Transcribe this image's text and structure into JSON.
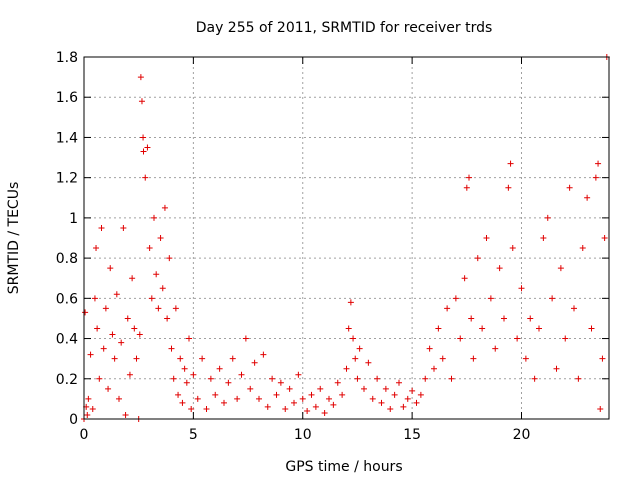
{
  "chart_data": {
    "type": "scatter",
    "title": "Day 255 of 2011, SRMTID for receiver trds",
    "xlabel": "GPS time / hours",
    "ylabel": "SRMTID / TECUs",
    "xlim": [
      0,
      24
    ],
    "ylim": [
      0,
      1.8
    ],
    "xticks": [
      0,
      5,
      10,
      15,
      20
    ],
    "xtick_labels": [
      "0",
      "5",
      "10",
      "15",
      "20"
    ],
    "yticks": [
      0,
      0.2,
      0.4,
      0.6,
      0.8,
      1.0,
      1.2,
      1.4,
      1.6,
      1.8
    ],
    "ytick_labels": [
      "0",
      "0.2",
      "0.4",
      "0.6",
      "0.8",
      "1",
      "1.2",
      "1.4",
      "1.6",
      "1.8"
    ],
    "grid": true,
    "marker": "+",
    "series": [
      {
        "name": "SRMTID",
        "color": "#e00000",
        "points": [
          [
            0.0,
            0.0
          ],
          [
            0.05,
            0.53
          ],
          [
            0.1,
            0.06
          ],
          [
            0.15,
            0.02
          ],
          [
            0.2,
            0.1
          ],
          [
            0.3,
            0.32
          ],
          [
            0.4,
            0.05
          ],
          [
            0.5,
            0.6
          ],
          [
            0.55,
            0.85
          ],
          [
            0.6,
            0.45
          ],
          [
            0.7,
            0.2
          ],
          [
            0.8,
            0.95
          ],
          [
            0.9,
            0.35
          ],
          [
            1.0,
            0.55
          ],
          [
            1.1,
            0.15
          ],
          [
            1.2,
            0.75
          ],
          [
            1.3,
            0.42
          ],
          [
            1.4,
            0.3
          ],
          [
            1.5,
            0.62
          ],
          [
            1.6,
            0.1
          ],
          [
            1.7,
            0.38
          ],
          [
            1.8,
            0.95
          ],
          [
            1.9,
            0.02
          ],
          [
            2.0,
            0.5
          ],
          [
            2.1,
            0.22
          ],
          [
            2.2,
            0.7
          ],
          [
            2.3,
            0.45
          ],
          [
            2.4,
            0.3
          ],
          [
            2.5,
            0.0
          ],
          [
            2.55,
            0.42
          ],
          [
            2.6,
            1.7
          ],
          [
            2.65,
            1.58
          ],
          [
            2.7,
            1.4
          ],
          [
            2.72,
            1.33
          ],
          [
            2.8,
            1.2
          ],
          [
            2.9,
            1.35
          ],
          [
            3.0,
            0.85
          ],
          [
            3.1,
            0.6
          ],
          [
            3.2,
            1.0
          ],
          [
            3.3,
            0.72
          ],
          [
            3.4,
            0.55
          ],
          [
            3.5,
            0.9
          ],
          [
            3.6,
            0.65
          ],
          [
            3.7,
            1.05
          ],
          [
            3.8,
            0.5
          ],
          [
            3.9,
            0.8
          ],
          [
            4.0,
            0.35
          ],
          [
            4.1,
            0.2
          ],
          [
            4.2,
            0.55
          ],
          [
            4.3,
            0.12
          ],
          [
            4.4,
            0.3
          ],
          [
            4.5,
            0.08
          ],
          [
            4.6,
            0.25
          ],
          [
            4.7,
            0.18
          ],
          [
            4.8,
            0.4
          ],
          [
            4.9,
            0.05
          ],
          [
            5.0,
            0.22
          ],
          [
            5.2,
            0.1
          ],
          [
            5.4,
            0.3
          ],
          [
            5.6,
            0.05
          ],
          [
            5.8,
            0.2
          ],
          [
            6.0,
            0.12
          ],
          [
            6.2,
            0.25
          ],
          [
            6.4,
            0.08
          ],
          [
            6.6,
            0.18
          ],
          [
            6.8,
            0.3
          ],
          [
            7.0,
            0.1
          ],
          [
            7.2,
            0.22
          ],
          [
            7.4,
            0.4
          ],
          [
            7.6,
            0.15
          ],
          [
            7.8,
            0.28
          ],
          [
            8.0,
            0.1
          ],
          [
            8.2,
            0.32
          ],
          [
            8.4,
            0.06
          ],
          [
            8.6,
            0.2
          ],
          [
            8.8,
            0.12
          ],
          [
            9.0,
            0.18
          ],
          [
            9.2,
            0.05
          ],
          [
            9.4,
            0.15
          ],
          [
            9.6,
            0.08
          ],
          [
            9.8,
            0.22
          ],
          [
            10.0,
            0.1
          ],
          [
            10.2,
            0.04
          ],
          [
            10.4,
            0.12
          ],
          [
            10.6,
            0.06
          ],
          [
            10.8,
            0.15
          ],
          [
            11.0,
            0.03
          ],
          [
            11.2,
            0.1
          ],
          [
            11.4,
            0.07
          ],
          [
            11.6,
            0.18
          ],
          [
            11.8,
            0.12
          ],
          [
            12.0,
            0.25
          ],
          [
            12.1,
            0.45
          ],
          [
            12.2,
            0.58
          ],
          [
            12.3,
            0.4
          ],
          [
            12.4,
            0.3
          ],
          [
            12.5,
            0.2
          ],
          [
            12.6,
            0.35
          ],
          [
            12.8,
            0.15
          ],
          [
            13.0,
            0.28
          ],
          [
            13.2,
            0.1
          ],
          [
            13.4,
            0.2
          ],
          [
            13.6,
            0.08
          ],
          [
            13.8,
            0.15
          ],
          [
            14.0,
            0.05
          ],
          [
            14.2,
            0.12
          ],
          [
            14.4,
            0.18
          ],
          [
            14.6,
            0.06
          ],
          [
            14.8,
            0.1
          ],
          [
            15.0,
            0.14
          ],
          [
            15.2,
            0.08
          ],
          [
            15.4,
            0.12
          ],
          [
            15.6,
            0.2
          ],
          [
            15.8,
            0.35
          ],
          [
            16.0,
            0.25
          ],
          [
            16.2,
            0.45
          ],
          [
            16.4,
            0.3
          ],
          [
            16.6,
            0.55
          ],
          [
            16.8,
            0.2
          ],
          [
            17.0,
            0.6
          ],
          [
            17.2,
            0.4
          ],
          [
            17.4,
            0.7
          ],
          [
            17.5,
            1.15
          ],
          [
            17.6,
            1.2
          ],
          [
            17.7,
            0.5
          ],
          [
            17.8,
            0.3
          ],
          [
            18.0,
            0.8
          ],
          [
            18.2,
            0.45
          ],
          [
            18.4,
            0.9
          ],
          [
            18.6,
            0.6
          ],
          [
            18.8,
            0.35
          ],
          [
            19.0,
            0.75
          ],
          [
            19.2,
            0.5
          ],
          [
            19.4,
            1.15
          ],
          [
            19.5,
            1.27
          ],
          [
            19.6,
            0.85
          ],
          [
            19.8,
            0.4
          ],
          [
            20.0,
            0.65
          ],
          [
            20.2,
            0.3
          ],
          [
            20.4,
            0.5
          ],
          [
            20.6,
            0.2
          ],
          [
            20.8,
            0.45
          ],
          [
            21.0,
            0.9
          ],
          [
            21.2,
            1.0
          ],
          [
            21.4,
            0.6
          ],
          [
            21.6,
            0.25
          ],
          [
            21.8,
            0.75
          ],
          [
            22.0,
            0.4
          ],
          [
            22.2,
            1.15
          ],
          [
            22.4,
            0.55
          ],
          [
            22.6,
            0.2
          ],
          [
            22.8,
            0.85
          ],
          [
            23.0,
            1.1
          ],
          [
            23.2,
            0.45
          ],
          [
            23.4,
            1.2
          ],
          [
            23.5,
            1.27
          ],
          [
            23.6,
            0.05
          ],
          [
            23.7,
            0.3
          ],
          [
            23.8,
            0.9
          ],
          [
            23.9,
            1.8
          ]
        ]
      }
    ]
  }
}
